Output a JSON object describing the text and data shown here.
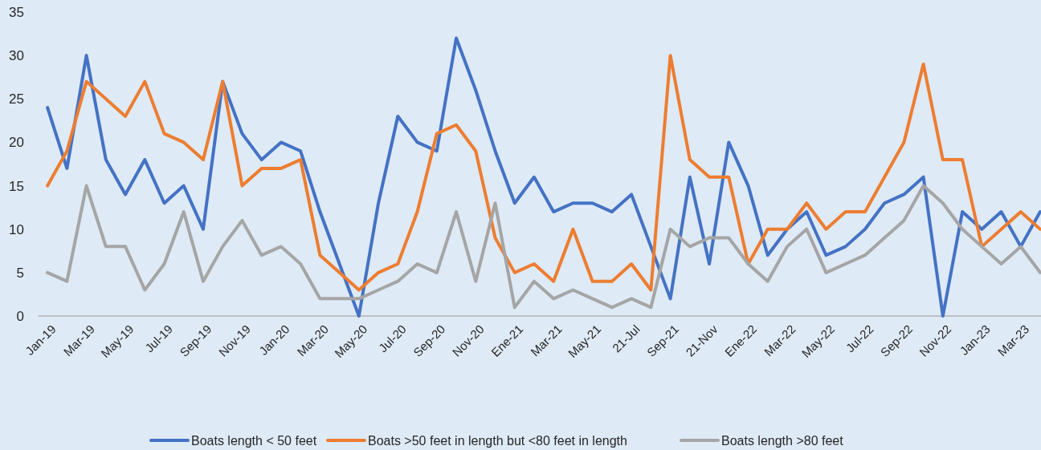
{
  "chart_data": {
    "type": "line",
    "categories": [
      "Jan-19",
      null,
      "Mar-19",
      null,
      "May-19",
      null,
      "Jul-19",
      null,
      "Sep-19",
      null,
      "Nov-19",
      null,
      "Jan-20",
      null,
      "Mar-20",
      null,
      "May-20",
      null,
      "Jul-20",
      null,
      "Sep-20",
      null,
      "Nov-20",
      null,
      "Ene-21",
      null,
      "Mar-21",
      null,
      "May-21",
      null,
      "21-Jul",
      null,
      "Sep-21",
      null,
      "21-Nov",
      null,
      "Ene-22",
      null,
      "Mar-22",
      null,
      "May-22",
      null,
      "Jul-22",
      null,
      "Sep-22",
      null,
      "Nov-22",
      null,
      "Jan-23",
      null,
      "Mar-23",
      null
    ],
    "series": [
      {
        "name": "Boats length < 50 feet",
        "color": "#4472c4",
        "values": [
          24,
          17,
          30,
          18,
          14,
          18,
          13,
          15,
          10,
          27,
          21,
          18,
          20,
          19,
          12,
          6,
          0,
          13,
          23,
          20,
          19,
          32,
          26,
          19,
          13,
          16,
          12,
          13,
          13,
          12,
          14,
          8,
          2,
          16,
          6,
          20,
          15,
          7,
          10,
          12,
          7,
          8,
          10,
          13,
          14,
          16,
          0,
          12,
          10,
          12,
          8,
          12
        ]
      },
      {
        "name": "Boats >50 feet in length but <80 feet in length",
        "color": "#ed7d31",
        "values": [
          15,
          19,
          27,
          25,
          23,
          27,
          21,
          20,
          18,
          27,
          15,
          17,
          17,
          18,
          7,
          5,
          3,
          5,
          6,
          12,
          21,
          22,
          19,
          9,
          5,
          6,
          4,
          10,
          4,
          4,
          6,
          3,
          30,
          18,
          16,
          16,
          6,
          10,
          10,
          13,
          10,
          12,
          12,
          16,
          20,
          29,
          18,
          18,
          8,
          10,
          12,
          10
        ]
      },
      {
        "name": "Boats length >80 feet",
        "color": "#a5a5a5",
        "values": [
          5,
          4,
          15,
          8,
          8,
          3,
          6,
          12,
          4,
          8,
          11,
          7,
          8,
          6,
          2,
          2,
          2,
          3,
          4,
          6,
          5,
          12,
          4,
          13,
          1,
          4,
          2,
          3,
          2,
          1,
          2,
          1,
          10,
          8,
          9,
          9,
          6,
          4,
          8,
          10,
          5,
          6,
          7,
          9,
          11,
          15,
          13,
          10,
          8,
          6,
          8,
          5
        ]
      }
    ],
    "ylim": [
      0,
      35
    ],
    "yticks": [
      0,
      5,
      10,
      15,
      20,
      25,
      30,
      35
    ],
    "grid": false,
    "legend": "bottom",
    "marker": "none",
    "line_style": "solid"
  }
}
